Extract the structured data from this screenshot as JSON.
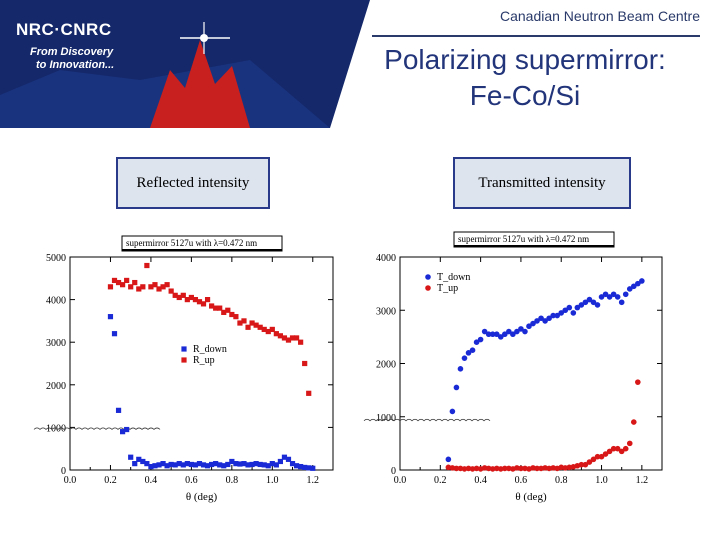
{
  "header": {
    "org": "Canadian Neutron Beam Centre",
    "logo": "NRC·CNRC",
    "tagline_1": "From Discovery",
    "tagline_2": "to Innovation...",
    "title_line_1": "Polarizing supermirror:",
    "title_line_2": "Fe-Co/Si",
    "colors": {
      "banner": "#14286a",
      "leaf": "#c8201e",
      "title": "#22347a"
    }
  },
  "captions": {
    "left": "Reflected intensity",
    "right": "Transmitted intensity"
  },
  "chart_data": [
    {
      "type": "scatter",
      "title": "supermirror 5127u with λ=0.472 nm",
      "xlabel": "θ (deg)",
      "ylabel": "",
      "xlim": [
        0,
        1.3
      ],
      "ylim": [
        0,
        5000
      ],
      "xticks": [
        "0.0",
        "0.2",
        "0.4",
        "0.6",
        "0.8",
        "1.0",
        "1.2"
      ],
      "yticks": [
        "0",
        "1000",
        "2000",
        "3000",
        "4000",
        "5000"
      ],
      "legend_position": "center-right",
      "series": [
        {
          "name": "R_down",
          "color": "#1a2bd6",
          "x": [
            0.2,
            0.22,
            0.24,
            0.26,
            0.28,
            0.3,
            0.32,
            0.34,
            0.36,
            0.38,
            0.4,
            0.42,
            0.44,
            0.46,
            0.48,
            0.5,
            0.52,
            0.54,
            0.56,
            0.58,
            0.6,
            0.62,
            0.64,
            0.66,
            0.68,
            0.7,
            0.72,
            0.74,
            0.76,
            0.78,
            0.8,
            0.82,
            0.84,
            0.86,
            0.88,
            0.9,
            0.92,
            0.94,
            0.96,
            0.98,
            1.0,
            1.02,
            1.04,
            1.06,
            1.08,
            1.1,
            1.12,
            1.14,
            1.16,
            1.18,
            1.2
          ],
          "y": [
            3600,
            3200,
            1400,
            900,
            950,
            300,
            150,
            250,
            200,
            150,
            80,
            100,
            120,
            150,
            100,
            130,
            120,
            150,
            120,
            150,
            130,
            120,
            150,
            120,
            100,
            130,
            150,
            120,
            100,
            130,
            200,
            150,
            140,
            150,
            120,
            130,
            150,
            130,
            120,
            100,
            150,
            120,
            200,
            300,
            250,
            150,
            100,
            80,
            60,
            50,
            40
          ]
        },
        {
          "name": "R_up",
          "color": "#d81818",
          "x": [
            0.2,
            0.22,
            0.24,
            0.26,
            0.28,
            0.3,
            0.32,
            0.34,
            0.36,
            0.38,
            0.4,
            0.42,
            0.44,
            0.46,
            0.48,
            0.5,
            0.52,
            0.54,
            0.56,
            0.58,
            0.6,
            0.62,
            0.64,
            0.66,
            0.68,
            0.7,
            0.72,
            0.74,
            0.76,
            0.78,
            0.8,
            0.82,
            0.84,
            0.86,
            0.88,
            0.9,
            0.92,
            0.94,
            0.96,
            0.98,
            1.0,
            1.02,
            1.04,
            1.06,
            1.08,
            1.1,
            1.12,
            1.14,
            1.16,
            1.18
          ],
          "y": [
            4300,
            4450,
            4400,
            4350,
            4450,
            4300,
            4400,
            4250,
            4300,
            4800,
            4300,
            4350,
            4250,
            4300,
            4350,
            4200,
            4100,
            4050,
            4100,
            4000,
            4050,
            4000,
            3950,
            3900,
            4000,
            3850,
            3800,
            3800,
            3700,
            3750,
            3650,
            3600,
            3450,
            3500,
            3350,
            3450,
            3400,
            3350,
            3300,
            3250,
            3300,
            3200,
            3150,
            3100,
            3050,
            3100,
            3100,
            3000,
            2500,
            1800
          ]
        }
      ]
    },
    {
      "type": "scatter",
      "title": "supermirror 5127u with λ=0.472 nm",
      "xlabel": "θ (deg)",
      "ylabel": "",
      "xlim": [
        0,
        1.3
      ],
      "ylim": [
        0,
        4000
      ],
      "xticks": [
        "0.0",
        "0.2",
        "0.4",
        "0.6",
        "0.8",
        "1.0",
        "1.2"
      ],
      "yticks": [
        "0",
        "1000",
        "2000",
        "3000",
        "4000"
      ],
      "legend_position": "top-left",
      "series": [
        {
          "name": "T_down",
          "color": "#1a2bd6",
          "x": [
            0.24,
            0.26,
            0.28,
            0.3,
            0.32,
            0.34,
            0.36,
            0.38,
            0.4,
            0.42,
            0.44,
            0.46,
            0.48,
            0.5,
            0.52,
            0.54,
            0.56,
            0.58,
            0.6,
            0.62,
            0.64,
            0.66,
            0.68,
            0.7,
            0.72,
            0.74,
            0.76,
            0.78,
            0.8,
            0.82,
            0.84,
            0.86,
            0.88,
            0.9,
            0.92,
            0.94,
            0.96,
            0.98,
            1.0,
            1.02,
            1.04,
            1.06,
            1.08,
            1.1,
            1.12,
            1.14,
            1.16,
            1.18,
            1.2
          ],
          "y": [
            200,
            1100,
            1550,
            1900,
            2100,
            2200,
            2250,
            2400,
            2450,
            2600,
            2550,
            2550,
            2550,
            2500,
            2550,
            2600,
            2550,
            2600,
            2650,
            2600,
            2700,
            2750,
            2800,
            2850,
            2800,
            2850,
            2900,
            2900,
            2950,
            3000,
            3050,
            2950,
            3050,
            3100,
            3150,
            3200,
            3150,
            3100,
            3250,
            3300,
            3250,
            3300,
            3250,
            3150,
            3300,
            3400,
            3450,
            3500,
            3550
          ]
        },
        {
          "name": "T_up",
          "color": "#d81818",
          "x": [
            0.24,
            0.26,
            0.28,
            0.3,
            0.32,
            0.34,
            0.36,
            0.38,
            0.4,
            0.42,
            0.44,
            0.46,
            0.48,
            0.5,
            0.52,
            0.54,
            0.56,
            0.58,
            0.6,
            0.62,
            0.64,
            0.66,
            0.68,
            0.7,
            0.72,
            0.74,
            0.76,
            0.78,
            0.8,
            0.82,
            0.84,
            0.86,
            0.88,
            0.9,
            0.92,
            0.94,
            0.96,
            0.98,
            1.0,
            1.02,
            1.04,
            1.06,
            1.08,
            1.1,
            1.12,
            1.14,
            1.16,
            1.18
          ],
          "y": [
            50,
            40,
            30,
            30,
            20,
            30,
            20,
            30,
            20,
            40,
            30,
            20,
            30,
            20,
            30,
            30,
            20,
            40,
            30,
            30,
            20,
            40,
            30,
            30,
            40,
            30,
            40,
            30,
            50,
            40,
            50,
            60,
            80,
            100,
            100,
            150,
            200,
            250,
            250,
            300,
            350,
            400,
            400,
            350,
            400,
            500,
            900,
            1650
          ]
        }
      ]
    }
  ]
}
